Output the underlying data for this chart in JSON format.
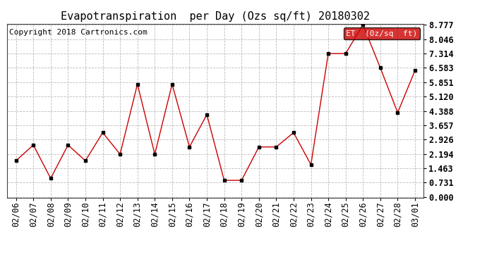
{
  "title": "Evapotranspiration  per Day (Ozs sq/ft) 20180302",
  "copyright": "Copyright 2018 Cartronics.com",
  "legend_label": "ET  (0z/sq  ft)",
  "x_labels": [
    "02/06",
    "02/07",
    "02/08",
    "02/09",
    "02/10",
    "02/11",
    "02/12",
    "02/13",
    "02/14",
    "02/15",
    "02/16",
    "02/17",
    "02/18",
    "02/19",
    "02/20",
    "02/21",
    "02/22",
    "02/23",
    "02/24",
    "02/25",
    "02/26",
    "02/27",
    "02/28",
    "03/01"
  ],
  "y_values": [
    1.85,
    2.65,
    0.95,
    2.65,
    1.85,
    3.28,
    2.18,
    5.75,
    2.18,
    5.75,
    2.55,
    4.2,
    0.85,
    0.85,
    2.55,
    2.55,
    3.28,
    1.65,
    7.31,
    7.31,
    8.777,
    6.58,
    4.3,
    6.45
  ],
  "y_ticks": [
    0.0,
    0.731,
    1.463,
    2.194,
    2.926,
    3.657,
    4.388,
    5.12,
    5.851,
    6.583,
    7.314,
    8.046,
    8.777
  ],
  "line_color": "#cc0000",
  "marker_color": "#000000",
  "legend_bg": "#cc0000",
  "legend_text_color": "white",
  "grid_color": "#bbbbbb",
  "background_color": "white",
  "title_fontsize": 11,
  "copyright_fontsize": 8,
  "ylim": [
    0.0,
    8.777
  ],
  "tick_fontsize": 8.5,
  "border_color": "#444444"
}
